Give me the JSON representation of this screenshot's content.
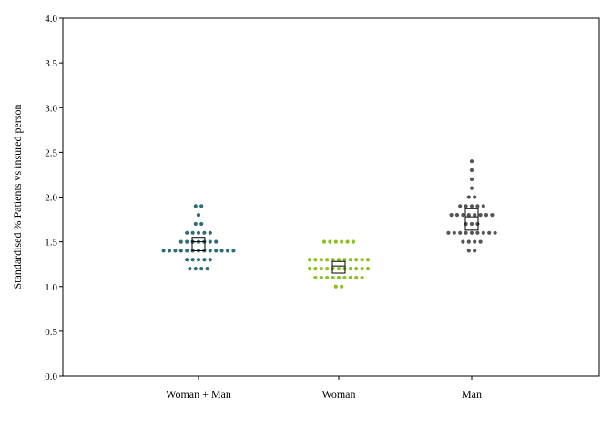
{
  "chart_data": {
    "type": "scatter",
    "subtype": "dot-strip (beeswarm) with median box",
    "title": "",
    "xlabel": "",
    "ylabel": "Standardised % Patients vs insured person",
    "ylim": [
      0,
      4
    ],
    "yticks": [
      0.0,
      0.5,
      1.0,
      1.5,
      2.0,
      2.5,
      3.0,
      3.5,
      4.0
    ],
    "ytick_labels": [
      "0.0",
      "0.5",
      "1.0",
      "1.5",
      "2.0",
      "2.5",
      "3.0",
      "3.5",
      "4.0"
    ],
    "categories": [
      "Woman + Man",
      "Woman",
      "Man"
    ],
    "grid": false,
    "legend": "none",
    "series": [
      {
        "category": "Woman + Man",
        "color": "#2d6e74",
        "values": [
          1.2,
          1.2,
          1.2,
          1.2,
          1.3,
          1.3,
          1.3,
          1.3,
          1.3,
          1.4,
          1.4,
          1.4,
          1.4,
          1.4,
          1.4,
          1.4,
          1.4,
          1.4,
          1.4,
          1.4,
          1.4,
          1.4,
          1.5,
          1.5,
          1.5,
          1.5,
          1.5,
          1.5,
          1.5,
          1.6,
          1.6,
          1.6,
          1.6,
          1.6,
          1.7,
          1.7,
          1.8,
          1.9,
          1.9
        ],
        "box": {
          "q1": 1.4,
          "median": 1.5,
          "q3": 1.55
        }
      },
      {
        "category": "Woman",
        "color": "#8cc024",
        "values": [
          1.0,
          1.0,
          1.1,
          1.1,
          1.1,
          1.1,
          1.1,
          1.1,
          1.1,
          1.1,
          1.1,
          1.2,
          1.2,
          1.2,
          1.2,
          1.2,
          1.2,
          1.2,
          1.2,
          1.2,
          1.2,
          1.2,
          1.3,
          1.3,
          1.3,
          1.3,
          1.3,
          1.3,
          1.3,
          1.3,
          1.3,
          1.3,
          1.3,
          1.5,
          1.5,
          1.5,
          1.5,
          1.5,
          1.5
        ],
        "box": {
          "q1": 1.15,
          "median": 1.23,
          "q3": 1.28
        }
      },
      {
        "category": "Man",
        "color": "#555555",
        "values": [
          1.4,
          1.4,
          1.5,
          1.5,
          1.5,
          1.5,
          1.6,
          1.6,
          1.6,
          1.6,
          1.6,
          1.6,
          1.6,
          1.6,
          1.6,
          1.7,
          1.7,
          1.7,
          1.8,
          1.8,
          1.8,
          1.8,
          1.8,
          1.8,
          1.8,
          1.8,
          1.9,
          1.9,
          1.9,
          1.9,
          1.9,
          2.0,
          2.0,
          2.1,
          2.2,
          2.3,
          2.4
        ],
        "box": {
          "q1": 1.63,
          "median": 1.78,
          "q3": 1.87
        }
      }
    ]
  }
}
